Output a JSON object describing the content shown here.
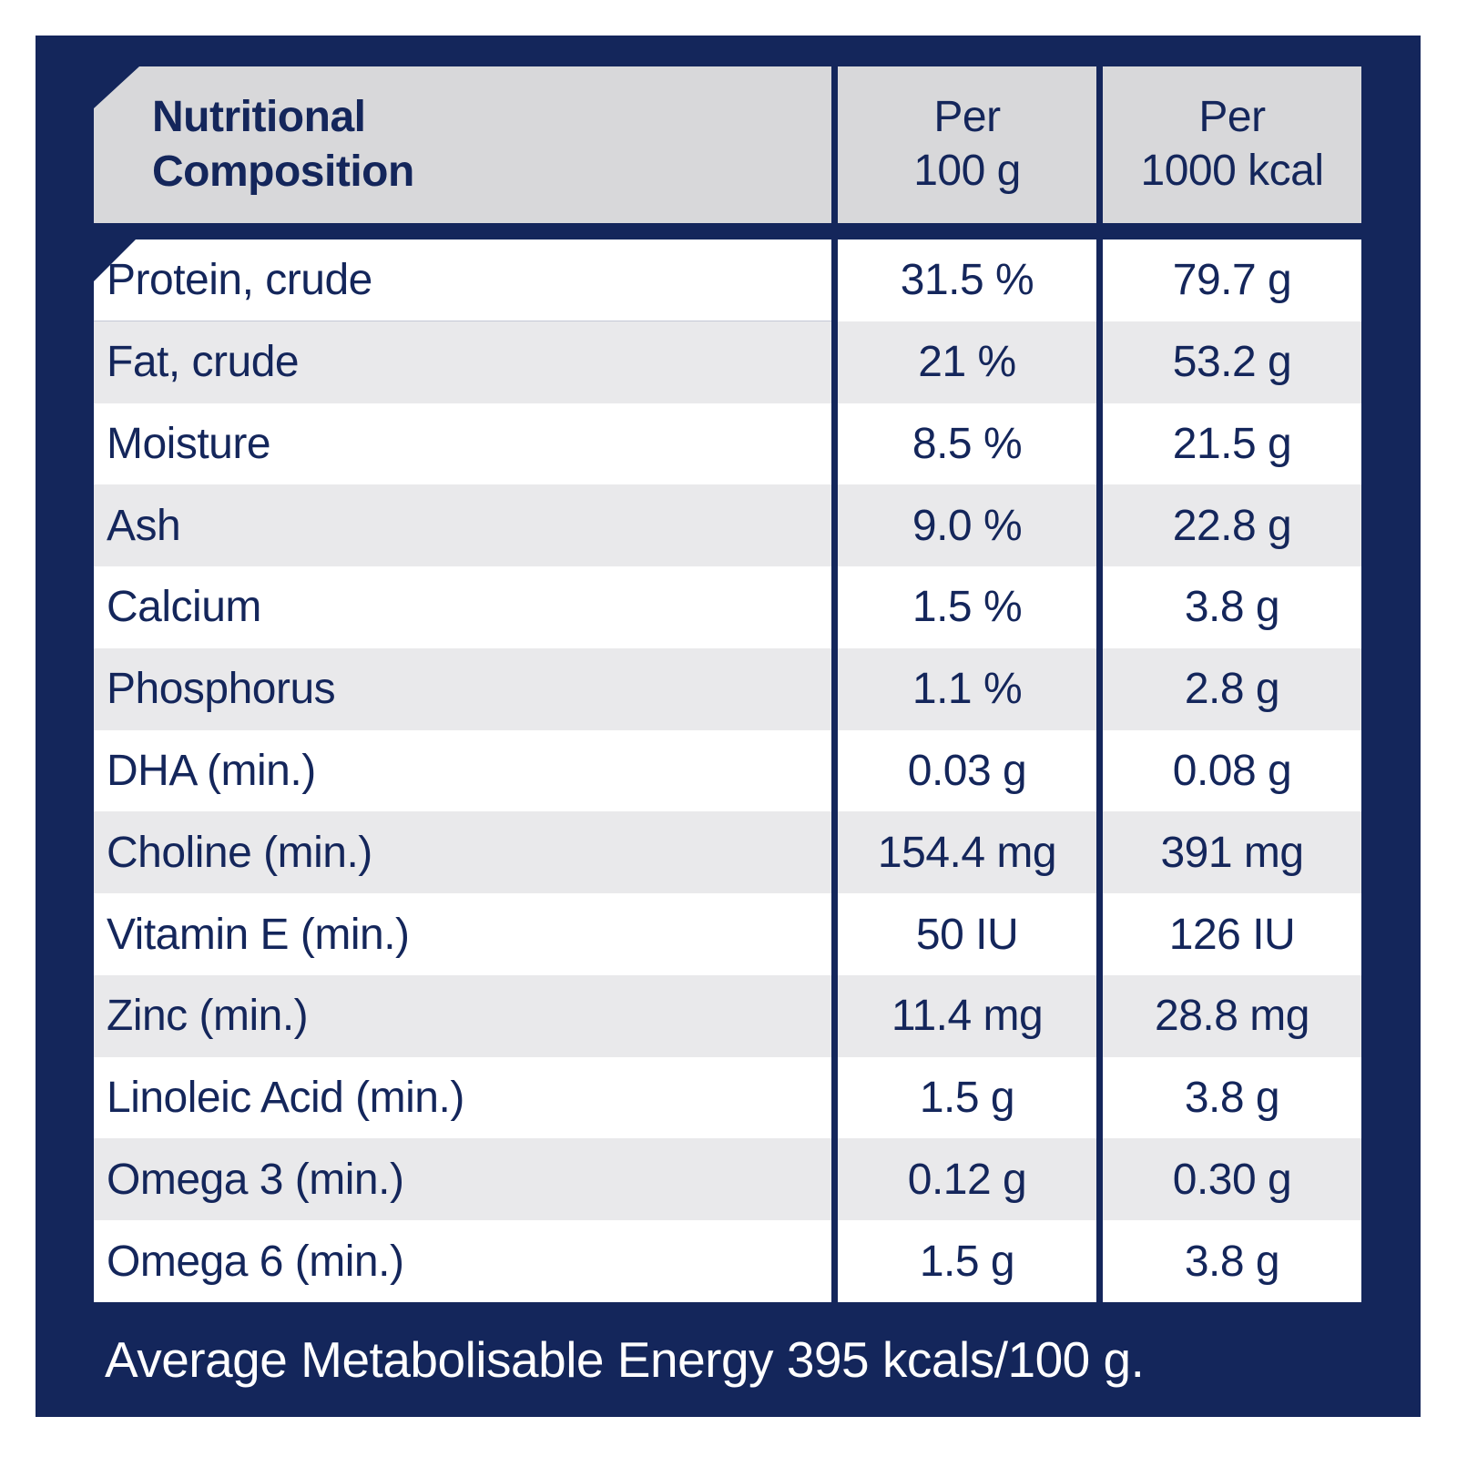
{
  "colors": {
    "navy": "#14265B",
    "header_gray": "#D8D8DA",
    "stripe_gray": "#E9E9EB",
    "row_white": "#FFFFFF",
    "text_navy": "#14265B",
    "footer_text": "#FFFFFF"
  },
  "table": {
    "title_lines": [
      "Nutritional",
      "Composition"
    ],
    "columns": [
      {
        "line1": "Per",
        "line2": "100 g"
      },
      {
        "line1": "Per",
        "line2": "1000 kcal"
      }
    ],
    "rows": [
      {
        "label": "Protein, crude",
        "per_100g": "31.5 %",
        "per_1000kcal": "79.7 g"
      },
      {
        "label": "Fat, crude",
        "per_100g": "21 %",
        "per_1000kcal": "53.2 g"
      },
      {
        "label": "Moisture",
        "per_100g": "8.5 %",
        "per_1000kcal": "21.5 g"
      },
      {
        "label": "Ash",
        "per_100g": "9.0 %",
        "per_1000kcal": "22.8 g"
      },
      {
        "label": "Calcium",
        "per_100g": "1.5 %",
        "per_1000kcal": "3.8 g"
      },
      {
        "label": "Phosphorus",
        "per_100g": "1.1 %",
        "per_1000kcal": "2.8 g"
      },
      {
        "label": "DHA (min.)",
        "per_100g": "0.03 g",
        "per_1000kcal": "0.08 g"
      },
      {
        "label": "Choline (min.)",
        "per_100g": "154.4 mg",
        "per_1000kcal": "391 mg"
      },
      {
        "label": "Vitamin E (min.)",
        "per_100g": "50 IU",
        "per_1000kcal": "126 IU"
      },
      {
        "label": "Zinc (min.)",
        "per_100g": "11.4 mg",
        "per_1000kcal": "28.8 mg"
      },
      {
        "label": "Linoleic Acid (min.)",
        "per_100g": "1.5 g",
        "per_1000kcal": "3.8 g"
      },
      {
        "label": "Omega 3 (min.)",
        "per_100g": "0.12 g",
        "per_1000kcal": "0.30 g"
      },
      {
        "label": "Omega 6 (min.)",
        "per_100g": "1.5 g",
        "per_1000kcal": "3.8 g"
      }
    ],
    "footer": "Average Metabolisable Energy 395 kcals/100 g."
  }
}
